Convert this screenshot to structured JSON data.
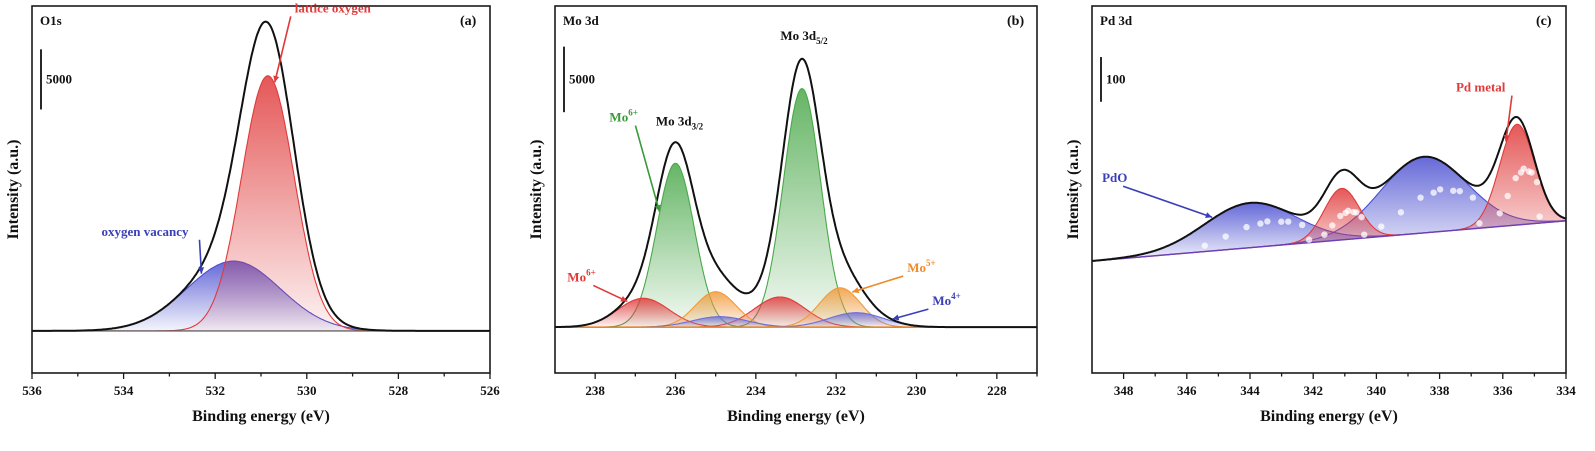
{
  "chart_data": [
    {
      "type": "line",
      "panel_label": "(a)",
      "element": "O1s",
      "xlabel": "Binding energy (eV)",
      "ylabel": "Intensity (a.u.)",
      "xlim": [
        536,
        526
      ],
      "x_ticks": [
        536,
        534,
        532,
        530,
        528,
        526
      ],
      "scale_bar_text": "5000",
      "scale_bar_value": 5000,
      "baseline": 1000,
      "ylim": [
        -2500,
        28000
      ],
      "components": [
        {
          "name": "oxygen vacancy",
          "center": 531.6,
          "height": 5800,
          "fwhm": 2.4,
          "color": "#4a4fd0"
        },
        {
          "name": "lattice oxygen",
          "center": 530.85,
          "height": 21200,
          "fwhm": 1.35,
          "color": "#e03a3a"
        }
      ],
      "annotations": [
        {
          "text": "oxygen vacancy",
          "color": "#3a3fb8",
          "component": "oxygen vacancy"
        },
        {
          "text": "lattice oxygen",
          "color": "#e03a3a",
          "component": "lattice oxygen"
        }
      ]
    },
    {
      "type": "line",
      "panel_label": "(b)",
      "element": "Mo 3d",
      "xlabel": "Binding energy (eV)",
      "ylabel": "Intensity (a.u.)",
      "xlim": [
        239,
        227
      ],
      "x_ticks": [
        238,
        236,
        234,
        232,
        230,
        228
      ],
      "scale_bar_text": "5000",
      "scale_bar_value": 5000,
      "ylim": [
        -3500,
        24500
      ],
      "peak_labels": [
        {
          "text": "Mo 3d",
          "sub": "3/2",
          "x": 235.9
        },
        {
          "text": "Mo 3d",
          "sub": "5/2",
          "x": 232.8
        }
      ],
      "components": [
        {
          "name": "Mo6+ 3d3/2",
          "center": 236.0,
          "height": 12500,
          "fwhm": 1.1,
          "color": "#4aa84a"
        },
        {
          "name": "Mo6+ 3d5/2",
          "center": 232.85,
          "height": 18200,
          "fwhm": 1.1,
          "color": "#4aa84a"
        },
        {
          "name": "Mo6+ broad 3d3/2",
          "center": 236.8,
          "height": 2200,
          "fwhm": 1.5,
          "color": "#e03a3a"
        },
        {
          "name": "Mo6+ broad 3d5/2",
          "center": 233.4,
          "height": 2300,
          "fwhm": 1.5,
          "color": "#e03a3a"
        },
        {
          "name": "Mo5+ 3d3/2",
          "center": 235.0,
          "height": 2700,
          "fwhm": 1.2,
          "color": "#f09a3a"
        },
        {
          "name": "Mo5+ 3d5/2",
          "center": 231.9,
          "height": 3000,
          "fwhm": 1.2,
          "color": "#f09a3a"
        },
        {
          "name": "Mo4+ 3d3/2",
          "center": 234.9,
          "height": 800,
          "fwhm": 1.6,
          "color": "#6a6fd8"
        },
        {
          "name": "Mo4+ 3d5/2",
          "center": 231.5,
          "height": 1100,
          "fwhm": 1.6,
          "color": "#6a6fd8"
        }
      ],
      "annotations": [
        {
          "text": "Mo",
          "sup": "6+",
          "color": "#3a9a3a",
          "component": "Mo6+ 3d3/2"
        },
        {
          "text": "Mo",
          "sup": "6+",
          "color": "#e03a3a",
          "component": "Mo6+ broad 3d3/2"
        },
        {
          "text": "Mo",
          "sup": "5+",
          "color": "#f08a2a",
          "component": "Mo5+ 3d5/2"
        },
        {
          "text": "Mo",
          "sup": "4+",
          "color": "#3a3fb8",
          "component": "Mo4+ 3d5/2"
        }
      ]
    },
    {
      "type": "line",
      "panel_label": "(c)",
      "element": "Pd 3d",
      "xlabel": "Binding energy (eV)",
      "ylabel": "Intensity (a.u.)",
      "xlim": [
        349,
        334
      ],
      "x_ticks": [
        348,
        346,
        344,
        342,
        340,
        338,
        336,
        334
      ],
      "scale_bar_text": "100",
      "scale_bar_value": 100,
      "ylim": [
        -250,
        570
      ],
      "baseline_points": [
        [
          349,
          0
        ],
        [
          334,
          90
        ]
      ],
      "components": [
        {
          "name": "PdO 3d3/2",
          "center": 344.0,
          "height": 100,
          "fwhm": 3.4,
          "color": "#4a4fd0"
        },
        {
          "name": "PdO 3d5/2",
          "center": 338.5,
          "height": 170,
          "fwhm": 3.2,
          "color": "#4a4fd0"
        },
        {
          "name": "Pd metal 3d3/2",
          "center": 341.1,
          "height": 115,
          "fwhm": 1.3,
          "color": "#e03a3a"
        },
        {
          "name": "Pd metal 3d5/2",
          "center": 335.55,
          "height": 225,
          "fwhm": 1.3,
          "color": "#e03a3a"
        }
      ],
      "annotations": [
        {
          "text": "PdO",
          "color": "#3a3fb8",
          "component": "PdO 3d3/2"
        },
        {
          "text": "Pd metal",
          "color": "#e03a3a",
          "component": "Pd metal 3d5/2"
        }
      ]
    }
  ]
}
